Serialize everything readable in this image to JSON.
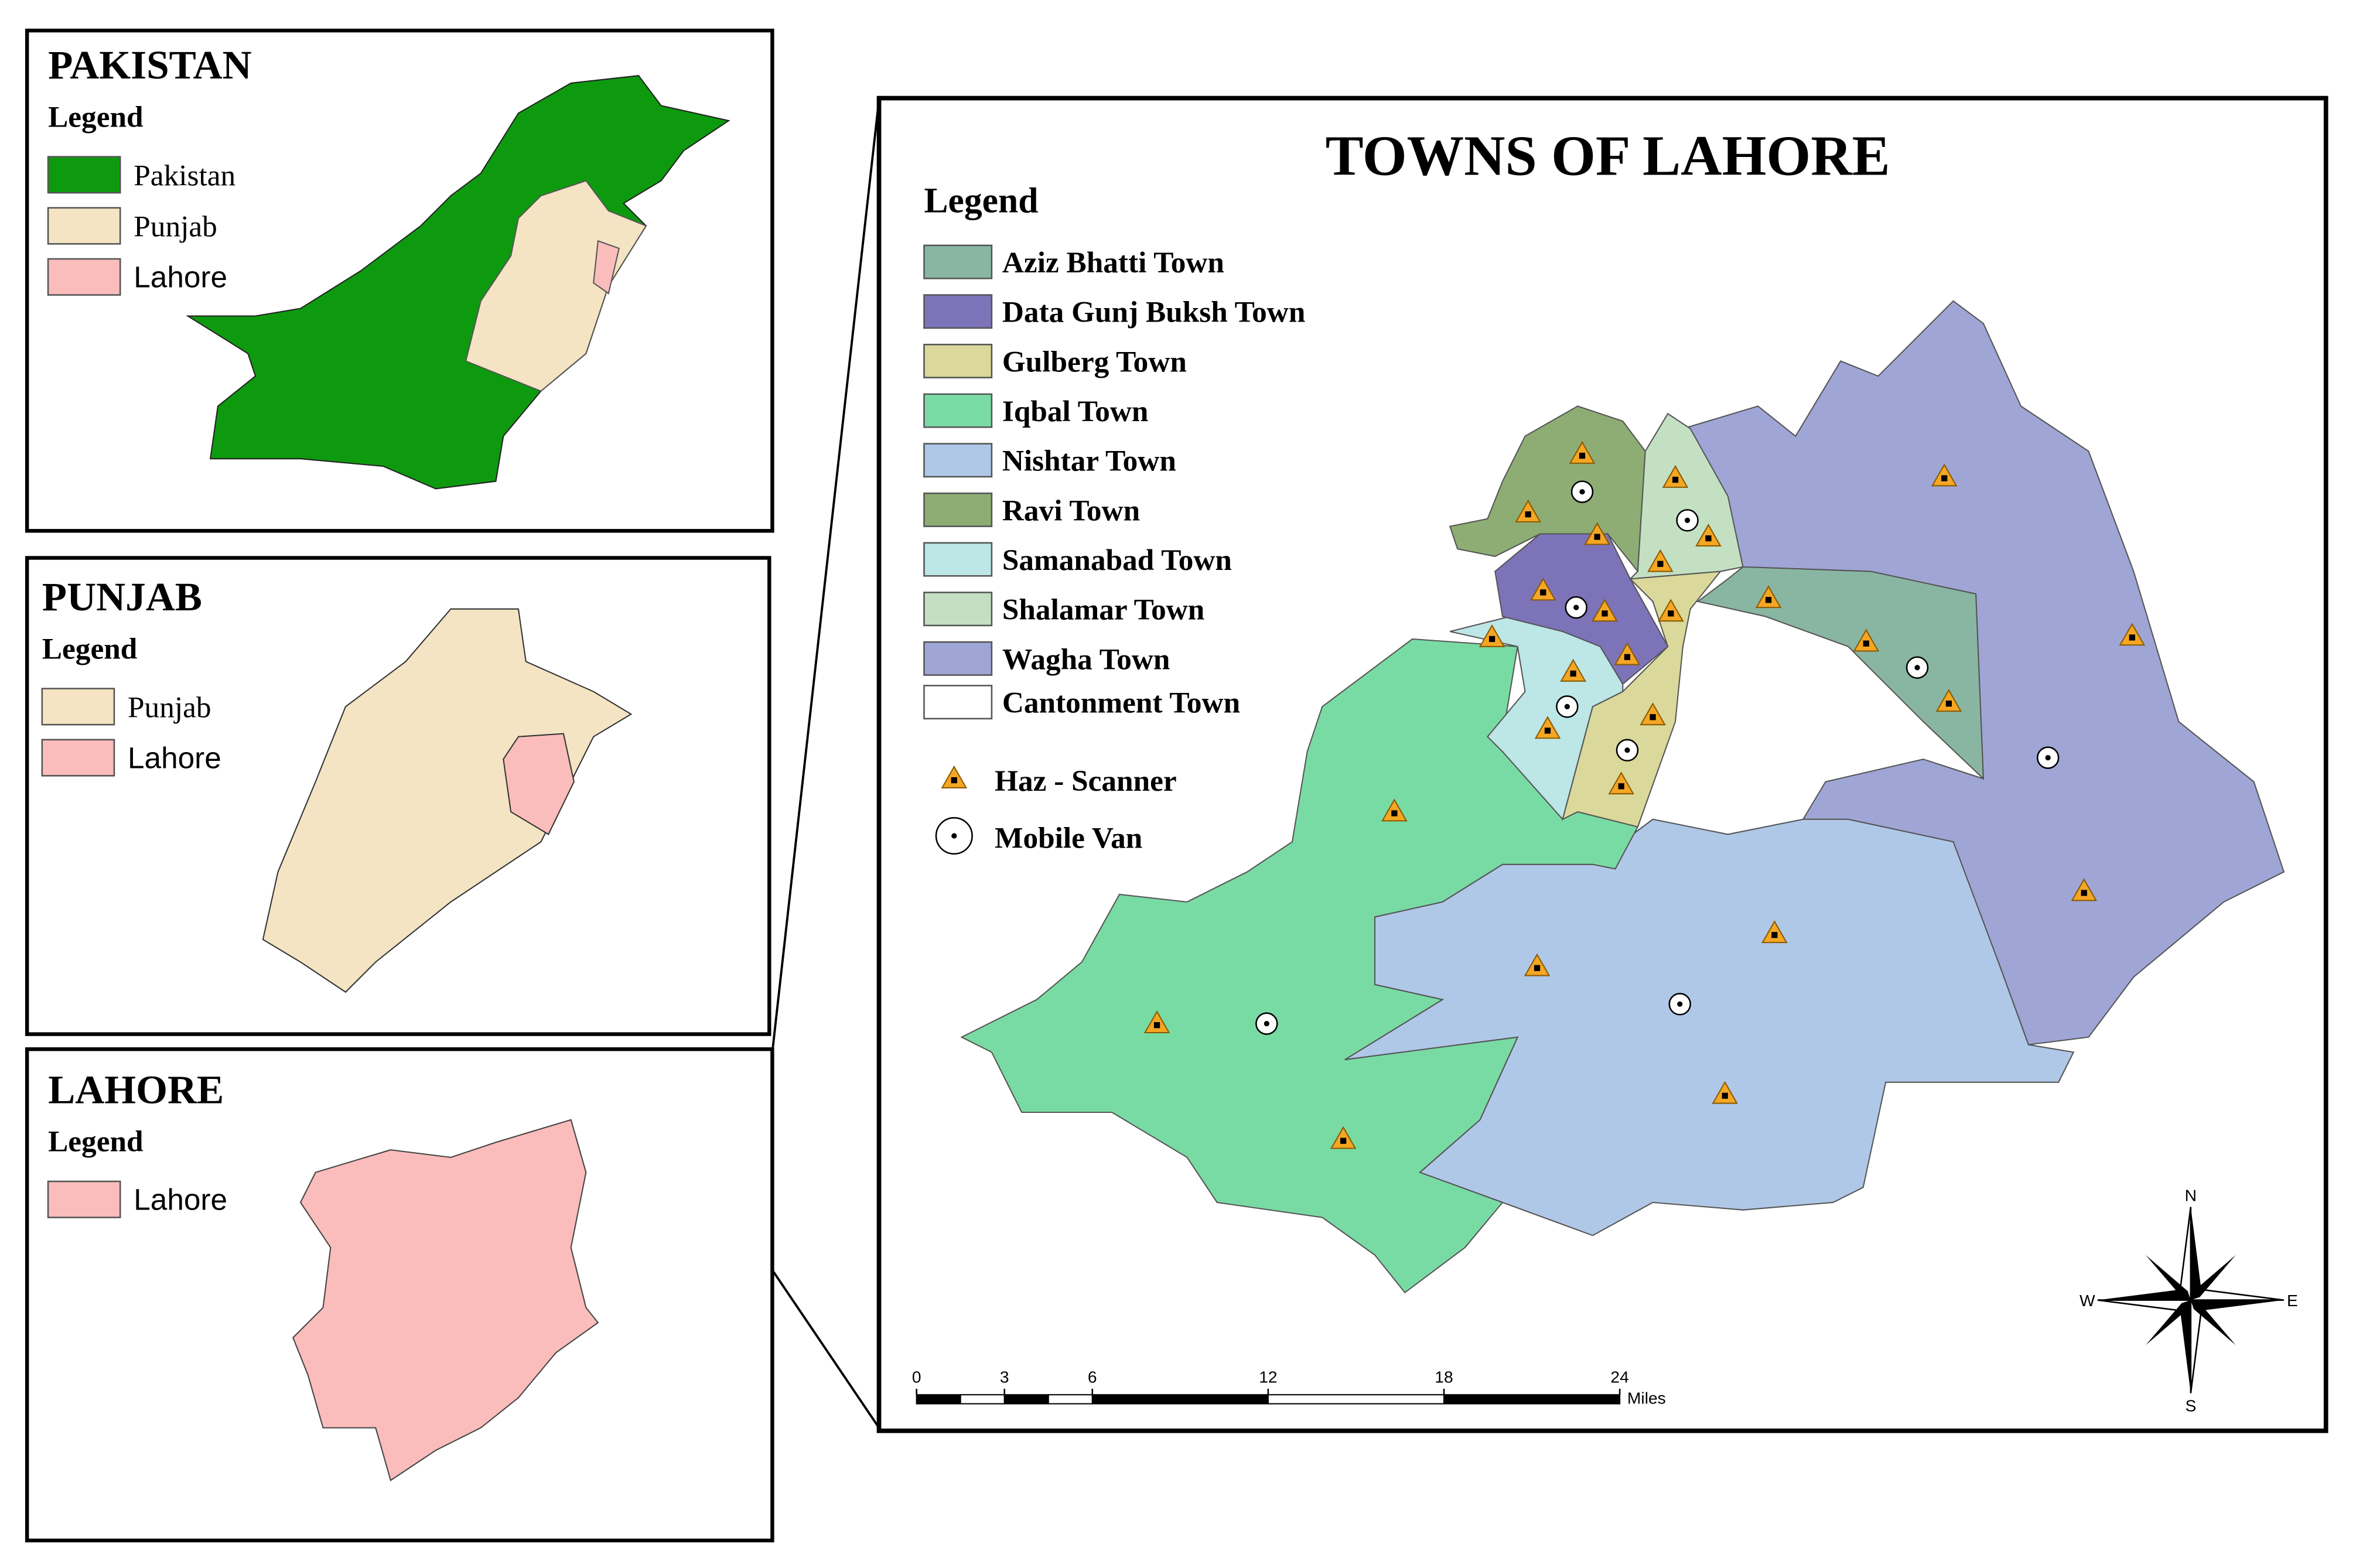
{
  "panels": [
    {
      "title": "PAKISTAN",
      "legend_title": "Legend",
      "items": [
        {
          "label": "Pakistan",
          "color": "#0e9a0e"
        },
        {
          "label": "Punjab",
          "color": "#f4e4c4"
        },
        {
          "label": "Lahore",
          "color": "#fbbcbc"
        }
      ]
    },
    {
      "title": "PUNJAB",
      "legend_title": "Legend",
      "items": [
        {
          "label": "Punjab",
          "color": "#f4e4c4"
        },
        {
          "label": "Lahore",
          "color": "#fbbcbc"
        }
      ]
    },
    {
      "title": "LAHORE",
      "legend_title": "Legend",
      "items": [
        {
          "label": "Lahore",
          "color": "#fbbcbc"
        }
      ]
    }
  ],
  "main": {
    "title": "TOWNS OF LAHORE",
    "legend_title": "Legend",
    "towns": [
      {
        "label": "Aziz Bhatti Town",
        "color": "#89b6a3"
      },
      {
        "label": "Data Gunj Buksh Town",
        "color": "#7d73b8"
      },
      {
        "label": "Gulberg Town",
        "color": "#dad99b"
      },
      {
        "label": "Iqbal Town",
        "color": "#79dba4"
      },
      {
        "label": "Nishtar Town",
        "color": "#b0c8e8"
      },
      {
        "label": "Ravi Town",
        "color": "#8ead74"
      },
      {
        "label": "Samanabad Town",
        "color": "#bde6e6"
      },
      {
        "label": "Shalamar Town",
        "color": "#c4e0c3"
      },
      {
        "label": "Wagha Town",
        "color": "#9fa6d6"
      },
      {
        "label": "Cantonment Town",
        "color": "#ffffff"
      }
    ],
    "symbols": [
      "Haz - Scanner",
      "Mobile Van"
    ],
    "scale_bar": {
      "ticks": [
        0,
        3,
        6,
        12,
        18,
        24
      ],
      "unit": "Miles"
    },
    "compass": {
      "n": "N",
      "e": "E",
      "s": "S",
      "w": "W"
    }
  }
}
